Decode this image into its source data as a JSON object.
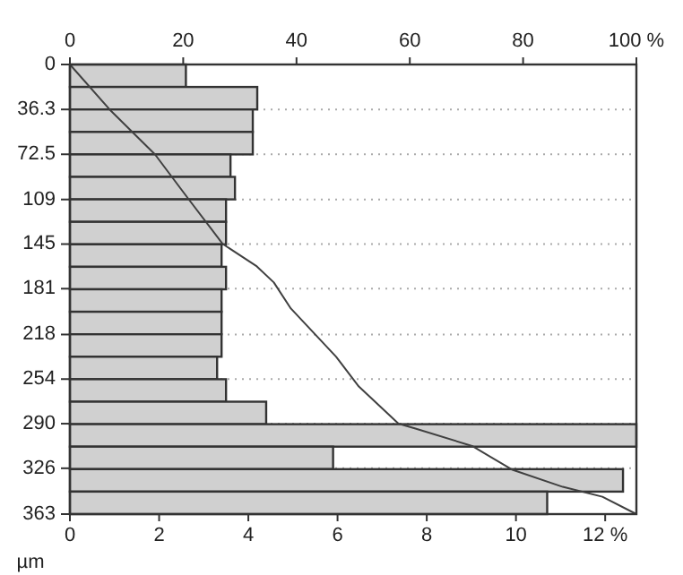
{
  "chart_data": {
    "type": "histogram",
    "orientation": "horizontal",
    "ylabel": "µm",
    "bins": [
      0,
      18.15,
      36.3,
      54.45,
      72.6,
      90.75,
      108.9,
      127.05,
      145.2,
      163.35,
      181.5,
      199.65,
      217.8,
      235.95,
      254.1,
      272.25,
      290.4,
      308.55,
      326.7,
      344.85,
      363
    ],
    "values": [
      2.6,
      4.2,
      4.1,
      4.1,
      3.6,
      3.7,
      3.5,
      3.5,
      3.4,
      3.5,
      3.4,
      3.4,
      3.4,
      3.3,
      3.5,
      4.4,
      12.7,
      5.9,
      12.4,
      10.7
    ],
    "color": "#d0d0d0",
    "ylim": [
      363,
      0
    ],
    "yticks": [
      0,
      36.3,
      72.5,
      109,
      145,
      181,
      218,
      254,
      290,
      326,
      363
    ],
    "xlim": [
      0,
      12.7
    ],
    "xticks": [
      0,
      2,
      4,
      6,
      8,
      10,
      {
        "value": 12,
        "label": "12 %"
      }
    ],
    "x2lim": [
      0,
      100
    ],
    "x2ticks": [
      0,
      20,
      40,
      60,
      80,
      {
        "value": 100,
        "label": "100 %"
      }
    ],
    "grid": "y",
    "series": [
      {
        "type": "line",
        "axis": "x2",
        "color": "#404040",
        "x": [
          0,
          36.3,
          72.5,
          109,
          145,
          163,
          176,
          197,
          236,
          260,
          290,
          294,
          308,
          327,
          341,
          349,
          363
        ],
        "values": [
          0,
          7,
          15,
          21,
          27,
          33,
          36,
          39,
          47,
          51,
          58,
          61,
          71,
          78,
          87,
          94,
          100
        ]
      }
    ]
  }
}
